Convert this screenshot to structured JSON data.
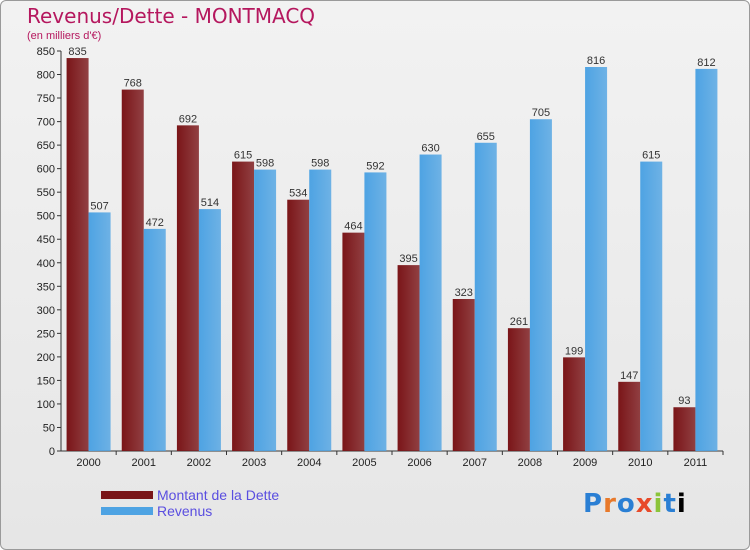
{
  "chart_data": {
    "type": "bar",
    "title": "Revenus/Dette - MONTMACQ",
    "subtitle": "(en milliers d'€)",
    "categories": [
      "2000",
      "2001",
      "2002",
      "2003",
      "2004",
      "2005",
      "2006",
      "2007",
      "2008",
      "2009",
      "2010",
      "2011"
    ],
    "series": [
      {
        "name": "Montant de la Dette",
        "color": "#7a1518",
        "values": [
          835,
          768,
          692,
          615,
          534,
          464,
          395,
          323,
          261,
          199,
          147,
          93
        ]
      },
      {
        "name": "Revenus",
        "color": "#4ea3e3",
        "values": [
          507,
          472,
          514,
          598,
          598,
          592,
          630,
          655,
          705,
          816,
          615,
          812
        ]
      }
    ],
    "yticks": [
      "0",
      "50",
      "100",
      "150",
      "200",
      "250",
      "300",
      "350",
      "400",
      "450",
      "500",
      "550",
      "600",
      "650",
      "700",
      "750",
      "800",
      "850"
    ],
    "ylim": [
      0,
      850
    ],
    "grid": false,
    "legend": "bottom-left"
  },
  "logo": {
    "letters": [
      "P",
      "r",
      "o",
      "x",
      "i",
      "t",
      "i"
    ]
  }
}
